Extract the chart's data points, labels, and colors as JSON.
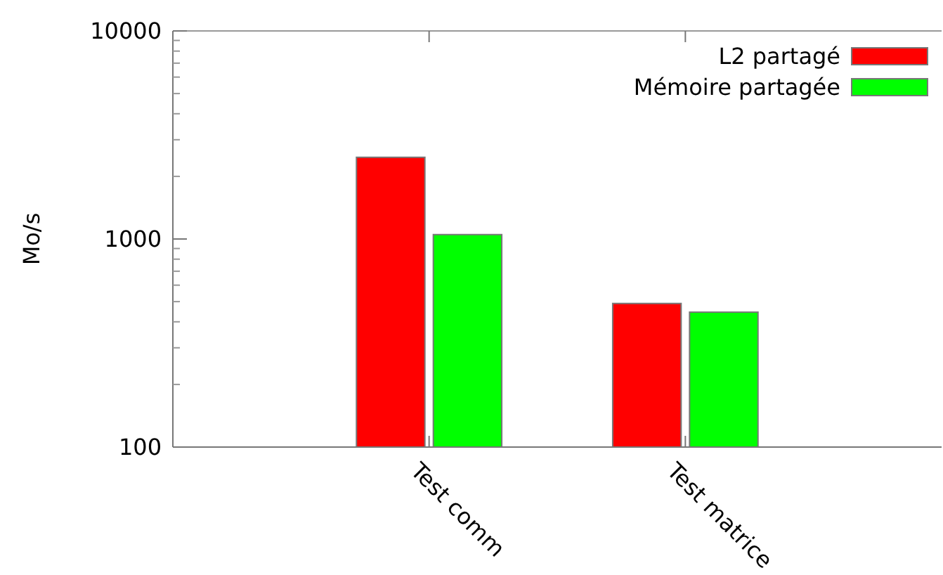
{
  "chart_data": {
    "type": "bar",
    "ylabel": "Mo/s",
    "categories": [
      "Test comm",
      "Test matrice"
    ],
    "series": [
      {
        "name": "L2 partagé",
        "color": "#ff0000",
        "values": [
          2470,
          490
        ]
      },
      {
        "name": "Mémoire partagée",
        "color": "#00ff00",
        "values": [
          1050,
          445
        ]
      }
    ],
    "log": true,
    "ylim": [
      100,
      10000
    ],
    "yticks": [
      100,
      1000,
      10000
    ],
    "legend": "top right",
    "grid": false
  }
}
